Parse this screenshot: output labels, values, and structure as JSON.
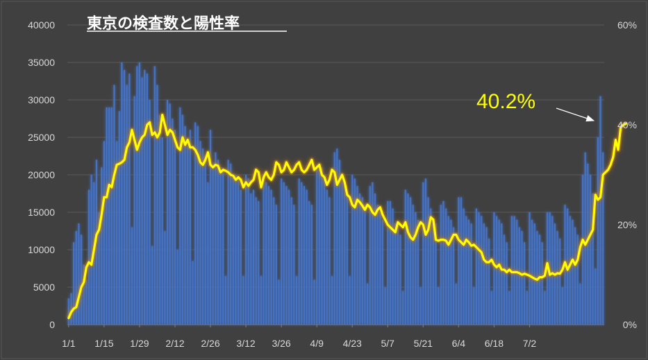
{
  "chart_data": {
    "type": "bar",
    "title": "東京の検査数と陽性率",
    "x_tick_labels": [
      "1/1",
      "1/15",
      "1/29",
      "2/12",
      "2/26",
      "3/12",
      "3/26",
      "4/9",
      "4/23",
      "5/7",
      "5/21",
      "6/4",
      "6/18",
      "7/2"
    ],
    "y_left_ticks": [
      "0",
      "5000",
      "10000",
      "15000",
      "20000",
      "25000",
      "30000",
      "35000",
      "40000"
    ],
    "y_right_ticks": [
      "0%",
      "20%",
      "40%",
      "60%"
    ],
    "ylim_left": [
      0,
      40000
    ],
    "ylim_right": [
      0,
      60
    ],
    "grid": true,
    "series": [
      {
        "axis": "left",
        "kind": "bar",
        "color": "#4472c4",
        "values": [
          3500,
          4200,
          11000,
          12500,
          13500,
          12000,
          8000,
          6000,
          18000,
          20000,
          19000,
          22000,
          15000,
          21000,
          24500,
          29000,
          29000,
          29000,
          32000,
          24500,
          28500,
          35000,
          34000,
          32000,
          33500,
          13000,
          30500,
          34500,
          35000,
          33000,
          34000,
          33500,
          30000,
          10500,
          34500,
          32000,
          28000,
          25000,
          12500,
          30000,
          29500,
          27500,
          26000,
          10000,
          29000,
          28000,
          26500,
          24500,
          26000,
          8500,
          27000,
          26500,
          24500,
          23500,
          22500,
          19000,
          26000,
          21500,
          23000,
          22000,
          21000,
          20500,
          6500,
          22000,
          21500,
          20000,
          20000,
          19500,
          18000,
          6500,
          20000,
          19500,
          17500,
          18000,
          17000,
          16500,
          6500,
          20000,
          19000,
          18500,
          18000,
          17000,
          16000,
          6000,
          19500,
          19000,
          18500,
          18000,
          17000,
          16000,
          6500,
          19500,
          19000,
          18500,
          18000,
          16500,
          16000,
          6000,
          21000,
          21500,
          21000,
          20000,
          18000,
          17000,
          6500,
          23000,
          23500,
          22000,
          20000,
          18500,
          17500,
          6500,
          20000,
          19500,
          18500,
          17500,
          17000,
          16000,
          5500,
          18500,
          19000,
          17500,
          16000,
          15000,
          14000,
          5000,
          16500,
          16500,
          15500,
          13500,
          13000,
          12000,
          4500,
          18000,
          17500,
          17000,
          16000,
          15000,
          14000,
          5000,
          19000,
          19500,
          17000,
          15500,
          14000,
          13500,
          5000,
          16000,
          16500,
          15500,
          14500,
          14000,
          13000,
          5500,
          17000,
          17000,
          15500,
          14500,
          14000,
          13500,
          5000,
          15500,
          15000,
          14500,
          13500,
          13000,
          11500,
          4500,
          15000,
          14500,
          14000,
          13500,
          12000,
          11000,
          4500,
          14500,
          14500,
          14000,
          13000,
          12500,
          11000,
          4500,
          15000,
          14000,
          13500,
          12500,
          12000,
          11000,
          4500,
          15000,
          15000,
          14500,
          13500,
          12500,
          11500,
          5000,
          16000,
          15500,
          14500,
          14000,
          13000,
          12000,
          5500,
          20000,
          23000,
          21500,
          20000,
          17500,
          7500,
          25000,
          30500,
          23000
        ]
      },
      {
        "axis": "right",
        "kind": "line",
        "color": "#ffff00",
        "values": [
          1.3,
          2.5,
          3.2,
          3.5,
          5.5,
          7.5,
          8.5,
          11.5,
          12.5,
          12,
          15,
          18,
          19,
          22,
          25.5,
          25.5,
          28,
          27.5,
          30,
          32,
          32.2,
          32.5,
          33,
          35.5,
          36.5,
          39,
          37,
          35,
          36.5,
          37.5,
          38,
          40,
          40.5,
          38,
          38.5,
          37.5,
          38.5,
          42,
          40,
          38,
          39,
          38.5,
          37,
          35.5,
          35,
          37.5,
          36,
          37,
          35.5,
          35.5,
          35,
          34,
          32.5,
          32,
          33,
          34.5,
          32,
          31.5,
          32,
          31.8,
          30.5,
          31,
          30.8,
          30.5,
          30,
          29.8,
          29,
          29.5,
          29,
          27.5,
          28.5,
          27.8,
          28.5,
          29,
          31,
          30.5,
          27.5,
          29.5,
          30.5,
          29.5,
          29,
          30,
          32.5,
          32,
          30.5,
          31,
          32.5,
          31.5,
          30.5,
          31,
          32,
          32.5,
          31,
          30.5,
          31,
          32,
          33,
          31,
          31.5,
          32,
          30,
          29.5,
          28,
          29,
          31,
          30.5,
          28,
          29,
          30,
          28.5,
          26,
          25.5,
          24,
          23.5,
          25,
          24.5,
          23.8,
          23,
          24,
          23.5,
          22.5,
          22,
          23,
          23.5,
          22,
          21,
          20,
          19.5,
          19,
          18.5,
          20.5,
          20,
          19.5,
          20.5,
          18.5,
          17.5,
          17,
          18,
          19.5,
          20.5,
          20,
          18,
          19,
          21.5,
          21,
          17,
          16.8,
          17,
          17,
          16.8,
          16,
          17,
          18,
          18,
          17,
          16.5,
          16,
          17,
          16.5,
          15.8,
          16,
          15.5,
          15,
          14.5,
          13,
          12.5,
          12.5,
          13,
          12,
          11.5,
          12,
          11,
          11,
          10.5,
          11,
          10.5,
          10.5,
          10.5,
          10.3,
          10,
          10.2,
          10,
          9.8,
          9.5,
          9.2,
          9,
          9.5,
          9.5,
          9.8,
          12.3,
          10,
          10.3,
          10,
          10.3,
          10.2,
          11,
          12.5,
          11,
          12,
          13,
          12,
          13,
          15.5,
          17,
          16,
          17,
          18,
          19,
          26,
          25,
          25.5,
          30,
          30.5,
          31,
          32,
          33.5,
          37,
          35,
          39.5,
          40,
          40.2
        ]
      }
    ],
    "annotations": [
      {
        "text": "40.2%"
      }
    ]
  }
}
